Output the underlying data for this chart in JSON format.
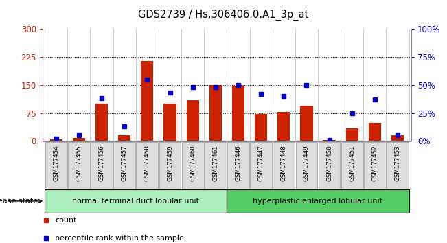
{
  "title": "GDS2739 / Hs.306406.0.A1_3p_at",
  "categories": [
    "GSM177454",
    "GSM177455",
    "GSM177456",
    "GSM177457",
    "GSM177458",
    "GSM177459",
    "GSM177460",
    "GSM177461",
    "GSM177446",
    "GSM177447",
    "GSM177448",
    "GSM177449",
    "GSM177450",
    "GSM177451",
    "GSM177452",
    "GSM177453"
  ],
  "counts": [
    5,
    8,
    100,
    15,
    215,
    100,
    110,
    150,
    148,
    73,
    78,
    95,
    3,
    33,
    48,
    15
  ],
  "percentiles": [
    2,
    5,
    38,
    13,
    55,
    43,
    48,
    48,
    50,
    42,
    40,
    50,
    1,
    25,
    37,
    5
  ],
  "group1_label": "normal terminal duct lobular unit",
  "group1_count": 8,
  "group2_label": "hyperplastic enlarged lobular unit",
  "group2_count": 8,
  "disease_state_label": "disease state",
  "ylim_left": [
    0,
    300
  ],
  "ylim_right": [
    0,
    100
  ],
  "yticks_left": [
    0,
    75,
    150,
    225,
    300
  ],
  "yticks_right": [
    0,
    25,
    50,
    75,
    100
  ],
  "ytick_labels_right": [
    "0%",
    "25%",
    "50%",
    "75%",
    "100%"
  ],
  "hlines": [
    75,
    150,
    225
  ],
  "bar_color": "#cc2200",
  "dot_color": "#0000cc",
  "group1_color": "#aaeebb",
  "group2_color": "#55cc66",
  "bg_color": "#ffffff",
  "plot_bg_color": "#ffffff",
  "tick_label_color_left": "#cc2200",
  "tick_label_color_right": "#0000cc",
  "legend_count_label": "count",
  "legend_pct_label": "percentile rank within the sample",
  "bar_width": 0.55,
  "col_border_color": "#bbbbbb",
  "xticklabel_bg": "#dddddd"
}
